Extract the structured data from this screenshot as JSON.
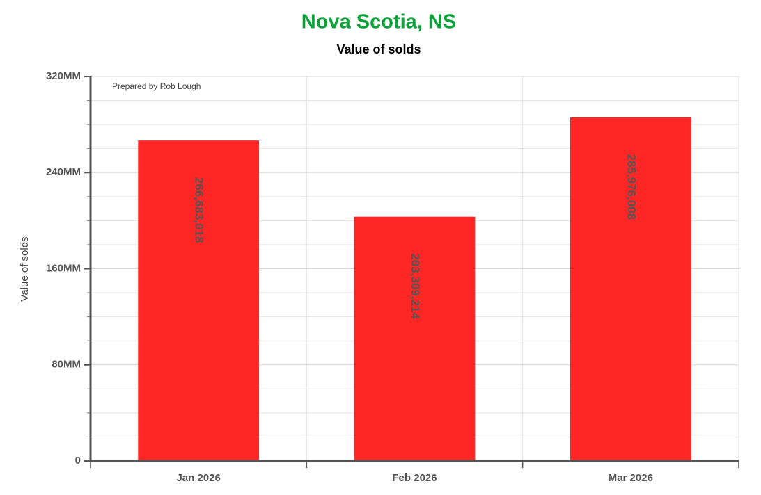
{
  "chart_data": {
    "type": "bar",
    "title": "Nova Scotia, NS",
    "subtitle": "Value of solds",
    "y_label": "Value of solds",
    "annotation": "Prepared by Rob Lough",
    "categories": [
      "Jan 2026",
      "Feb 2026",
      "Mar 2026"
    ],
    "values": [
      266683018,
      203309214,
      285976008
    ],
    "value_labels": [
      "266,683,018",
      "203,309,214",
      "285,976,008"
    ],
    "color": "#ff2626",
    "ylim": [
      0,
      320000000
    ],
    "yticks": [
      0,
      {
        "value": 80000000,
        "label": "80MM"
      },
      {
        "value": 160000000,
        "label": "160MM"
      },
      {
        "value": 240000000,
        "label": "240MM"
      },
      {
        "value": 320000000,
        "label": "320MM"
      }
    ],
    "minor_yticks": [
      20000000,
      40000000,
      60000000,
      100000000,
      120000000,
      140000000,
      180000000,
      200000000,
      220000000,
      260000000,
      280000000,
      300000000
    ],
    "grid": true
  }
}
